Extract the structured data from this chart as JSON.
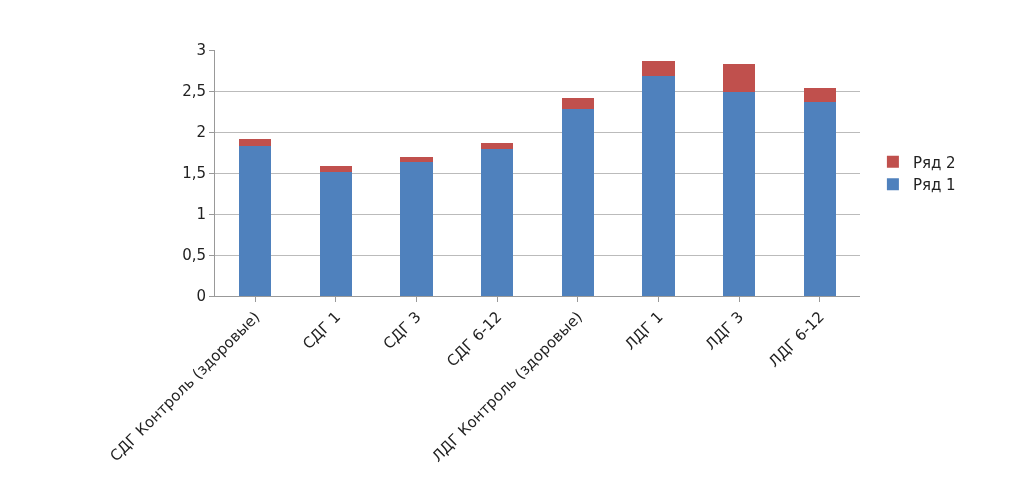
{
  "chart_data": {
    "type": "bar",
    "stacked": true,
    "categories": [
      "СДГ Контроль (здоровые)",
      "СДГ 1",
      "СДГ 3",
      "СДГ 6-12",
      "ЛДГ Контроль (здоровые)",
      "ЛДГ 1",
      "ЛДГ 3",
      "ЛДГ 6-12"
    ],
    "series": [
      {
        "name": "Ряд 1",
        "color": "#4f81bd",
        "values": [
          1.83,
          1.51,
          1.64,
          1.79,
          2.28,
          2.68,
          2.49,
          2.37
        ]
      },
      {
        "name": "Ряд 2",
        "color": "#c0504d",
        "values": [
          0.08,
          0.08,
          0.06,
          0.08,
          0.14,
          0.19,
          0.34,
          0.17
        ]
      }
    ],
    "ylim": [
      0,
      3
    ],
    "yticks": [
      0,
      {
        "value": 0.5,
        "label": "0,5"
      },
      1,
      {
        "value": 1.5,
        "label": "1,5"
      },
      2,
      {
        "value": 2.5,
        "label": "2,5"
      },
      3
    ],
    "grid": "y",
    "legend": "right"
  }
}
